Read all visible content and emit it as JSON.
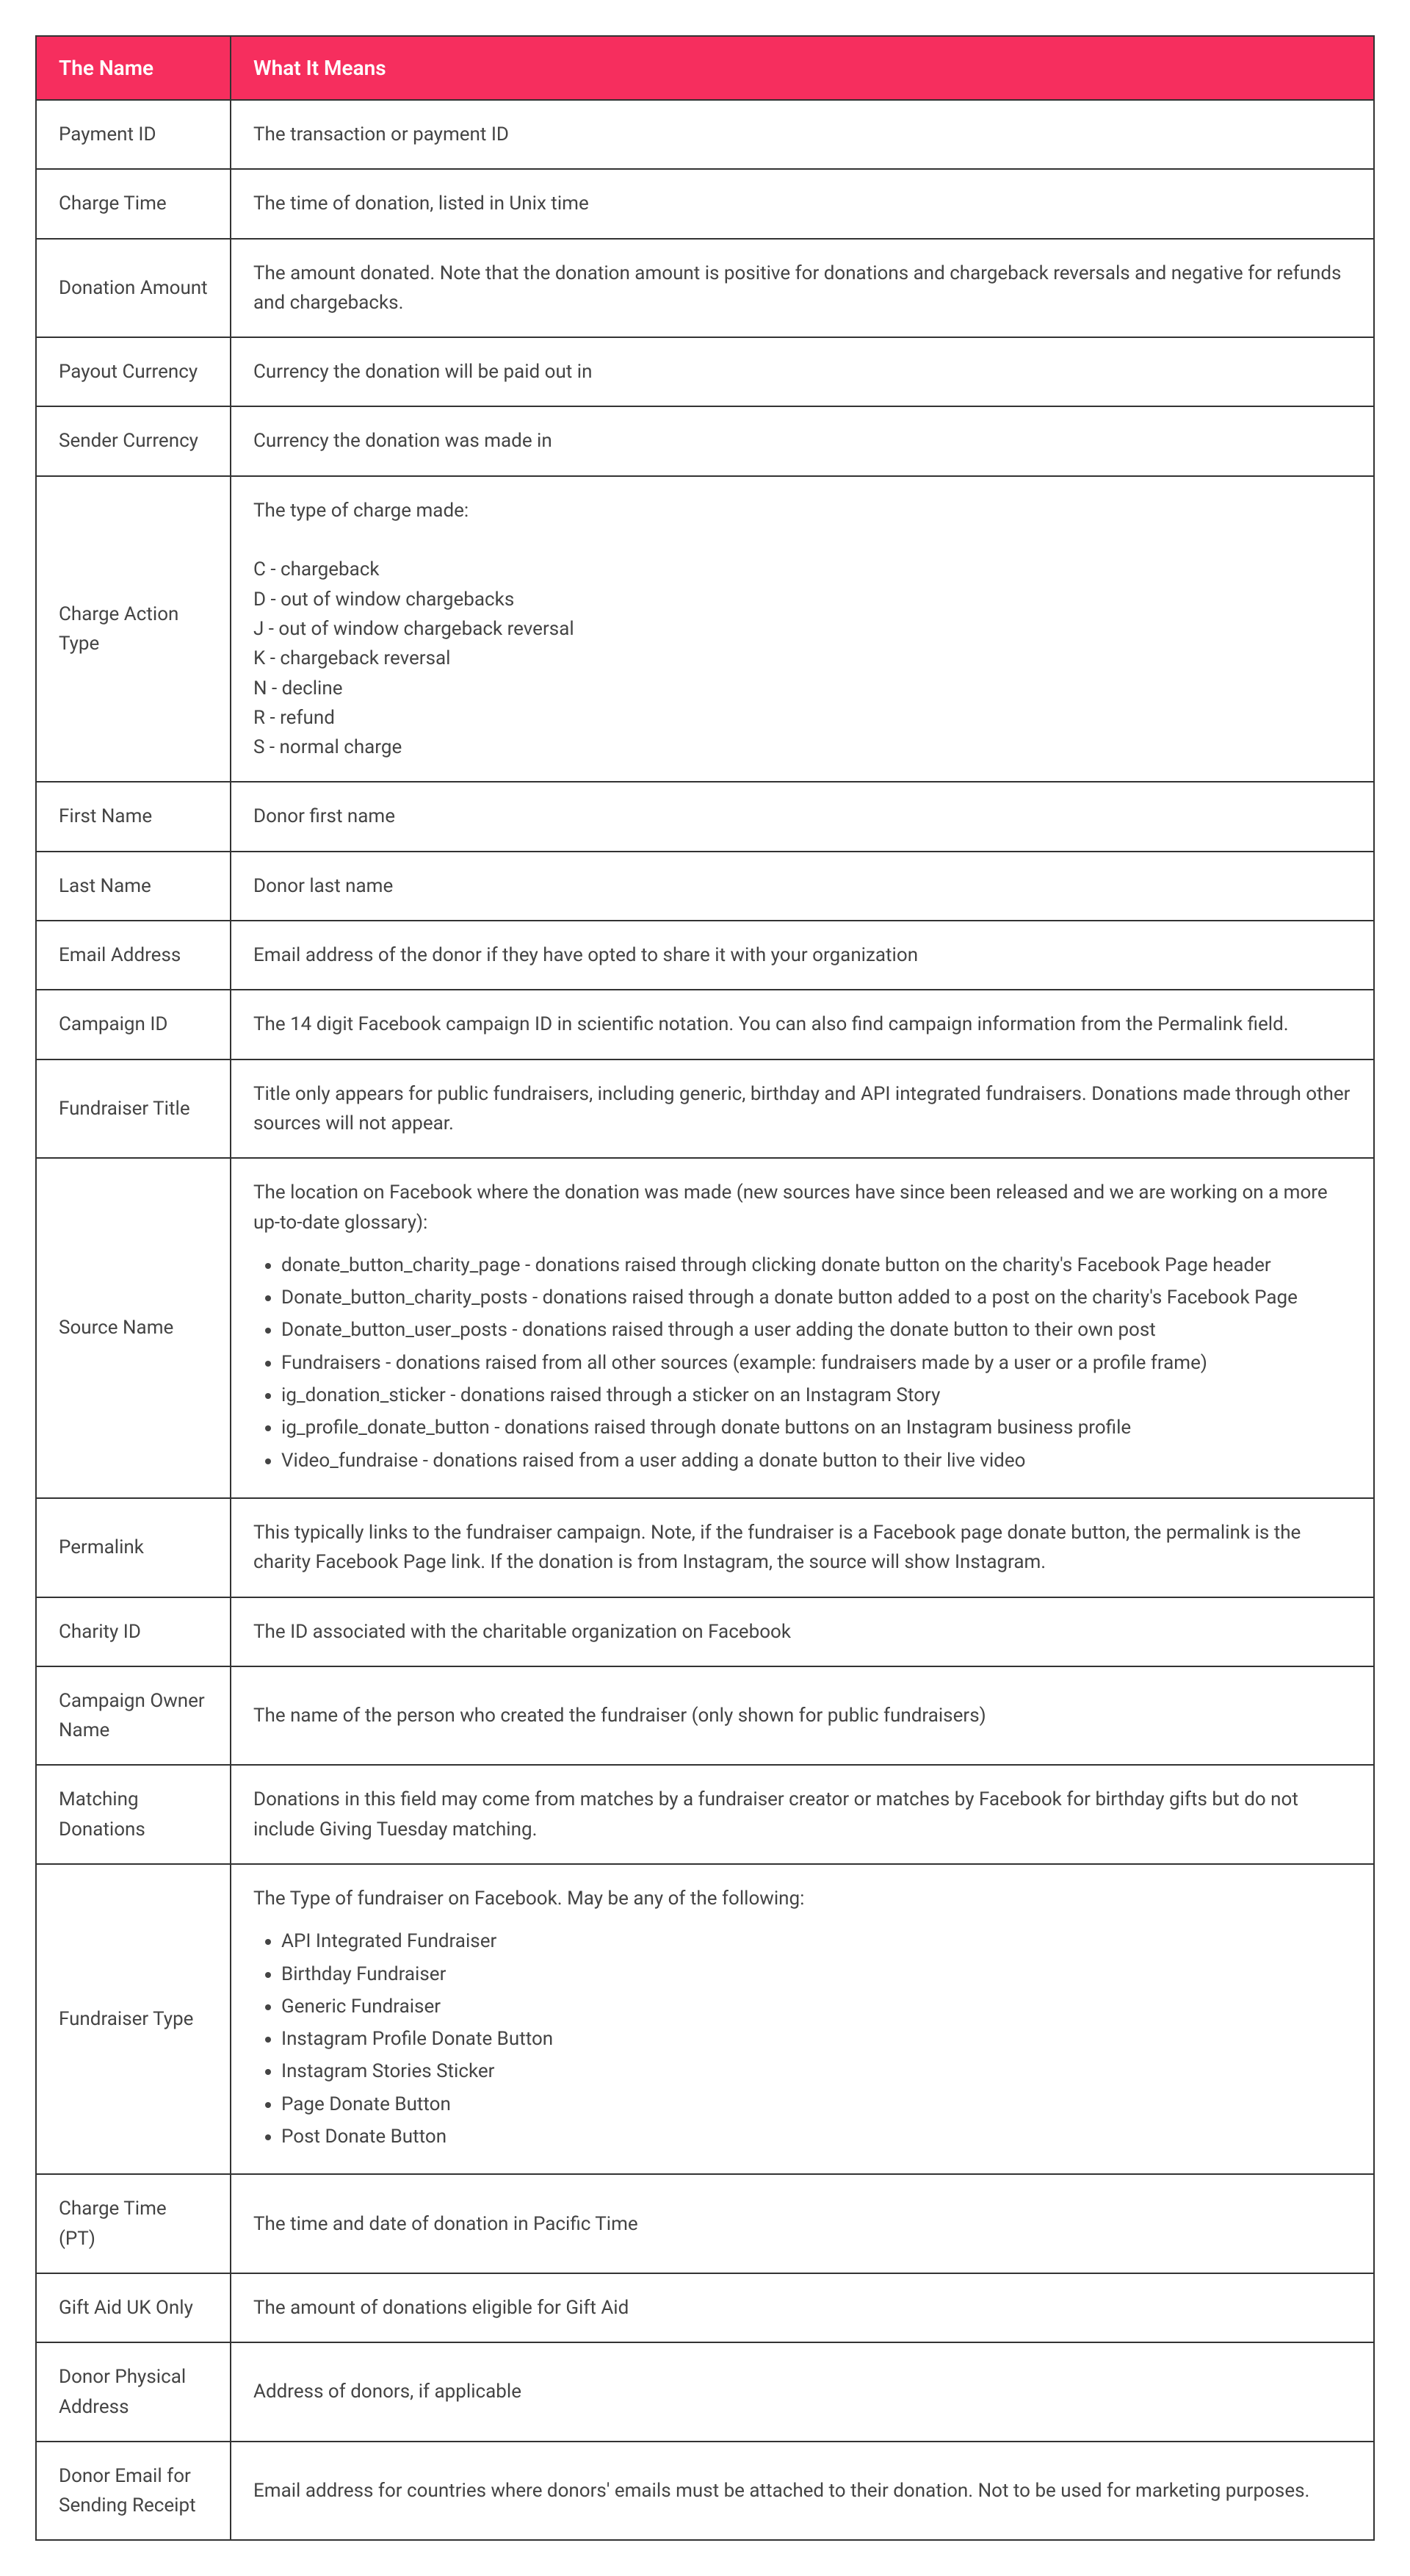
{
  "table": {
    "header_bg": "#f62e5e",
    "header_fg": "#ffffff",
    "border_color": "#333333",
    "columns": [
      "The Name",
      "What It Means"
    ],
    "rows": [
      {
        "name": "Payment ID",
        "type": "text",
        "text": "The transaction or payment ID"
      },
      {
        "name": "Charge Time",
        "type": "text",
        "text": "The time of donation, listed in Unix time"
      },
      {
        "name": "Donation Amount",
        "type": "text",
        "text": "The amount donated. Note that the donation amount is positive for donations and chargeback reversals and negative for refunds and chargebacks."
      },
      {
        "name": "Payout Currency",
        "type": "text",
        "text": "Currency the donation will be paid out in"
      },
      {
        "name": "Sender Currency",
        "type": "text",
        "text": "Currency the donation was made in"
      },
      {
        "name": "Charge Action Type",
        "type": "multiline",
        "text": "The type of charge made:\n\nC - chargeback\nD - out of window chargebacks\nJ - out of window chargeback reversal\nK - chargeback reversal\nN - decline\nR - refund\nS - normal charge"
      },
      {
        "name": "First Name",
        "type": "text",
        "text": "Donor first name"
      },
      {
        "name": "Last Name",
        "type": "text",
        "text": "Donor last name"
      },
      {
        "name": "Email Address",
        "type": "text",
        "text": "Email address of the donor if they have opted to share it with your organization"
      },
      {
        "name": "Campaign ID",
        "type": "text",
        "text": "The 14 digit Facebook campaign ID in scientific notation. You can also find campaign information from the Permalink field."
      },
      {
        "name": "Fundraiser Title",
        "type": "text",
        "text": "Title only appears for public fundraisers, including generic, birthday and API integrated fundraisers. Donations made through other sources will not appear."
      },
      {
        "name": "Source Name",
        "type": "intro_list",
        "intro": "The location on Facebook where the donation was made (new sources have since been released and we are working on a more up-to-date glossary):",
        "items": [
          "donate_button_charity_page - donations raised through clicking donate button on the charity's Facebook Page header",
          "Donate_button_charity_posts - donations raised through a donate button added to a post on the charity's Facebook Page",
          "Donate_button_user_posts - donations raised through a user adding the donate button to their own post",
          "Fundraisers - donations raised from all other sources (example: fundraisers made by a user or a profile frame)",
          "ig_donation_sticker - donations raised through a sticker on an Instagram Story",
          "ig_profile_donate_button - donations raised through donate buttons on an Instagram business profile",
          "Video_fundraise - donations raised from a user adding a donate button to their live video"
        ]
      },
      {
        "name": "Permalink",
        "type": "text",
        "text": "This typically links to the fundraiser campaign. Note, if the fundraiser is a Facebook page donate button, the permalink is the charity Facebook Page link. If the donation is from Instagram, the source will show Instagram."
      },
      {
        "name": "Charity ID",
        "type": "text",
        "text": "The ID associated with the charitable organization on Facebook"
      },
      {
        "name": "Campaign Owner Name",
        "type": "text",
        "text": "The name of the person who created the fundraiser (only shown for public fundraisers)"
      },
      {
        "name": "Matching Donations",
        "type": "text",
        "text": "Donations in this field may come from matches by a fundraiser creator or matches by Facebook for birthday gifts but do not include Giving Tuesday matching."
      },
      {
        "name": "Fundraiser Type",
        "type": "intro_list",
        "intro": "The Type of fundraiser on Facebook. May be any of the following:",
        "items": [
          "API Integrated Fundraiser",
          "Birthday Fundraiser",
          "Generic Fundraiser",
          "Instagram Profile Donate Button",
          "Instagram Stories Sticker",
          "Page Donate Button",
          "Post Donate Button"
        ]
      },
      {
        "name": "Charge Time (PT)",
        "type": "text",
        "text": "The time and date of donation in Pacific Time"
      },
      {
        "name": "Gift Aid UK Only",
        "type": "text",
        "text": "The amount of donations eligible for Gift Aid"
      },
      {
        "name": "Donor Physical Address",
        "type": "text",
        "text": "Address of donors, if applicable"
      },
      {
        "name": "Donor Email for Sending Receipt",
        "type": "text",
        "text": "Email address for countries where donors' emails must be attached to their donation. Not to be used for marketing purposes."
      }
    ]
  }
}
